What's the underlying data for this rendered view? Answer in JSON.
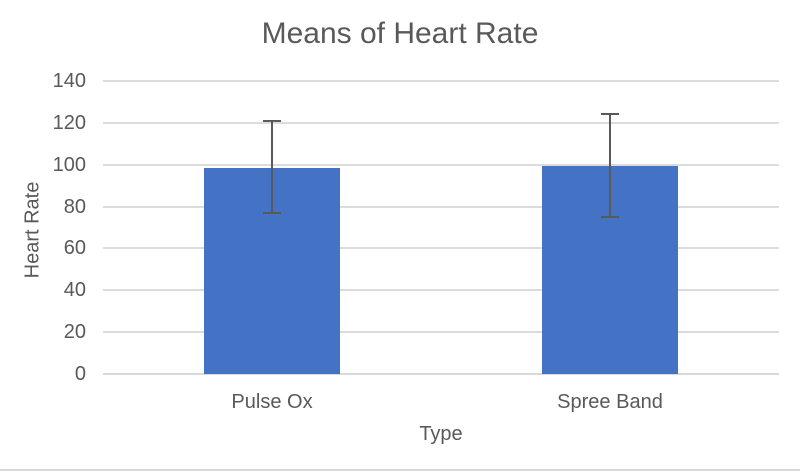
{
  "chart_data": {
    "type": "bar",
    "title": "Means of Heart Rate",
    "xlabel": "Type",
    "ylabel": "Heart Rate",
    "categories": [
      "Pulse Ox",
      "Spree Band"
    ],
    "series": [
      {
        "name": "Heart Rate",
        "values": [
          98.5,
          99.5
        ],
        "error_plus": [
          22.5,
          24.5
        ],
        "error_minus": [
          21.5,
          24.5
        ]
      }
    ],
    "ylim": [
      0,
      140
    ],
    "yticks": [
      0,
      20,
      40,
      60,
      80,
      100,
      120,
      140
    ],
    "grid": "horizontal",
    "legend": "none",
    "colors": {
      "bar": "#4472C4",
      "error_bar": "#595959",
      "gridline": "#DCDCDC",
      "axis_line": "#D9D9D9",
      "axis_text": "#595959",
      "title_text": "#595959",
      "background": "#FFFFFF"
    }
  }
}
